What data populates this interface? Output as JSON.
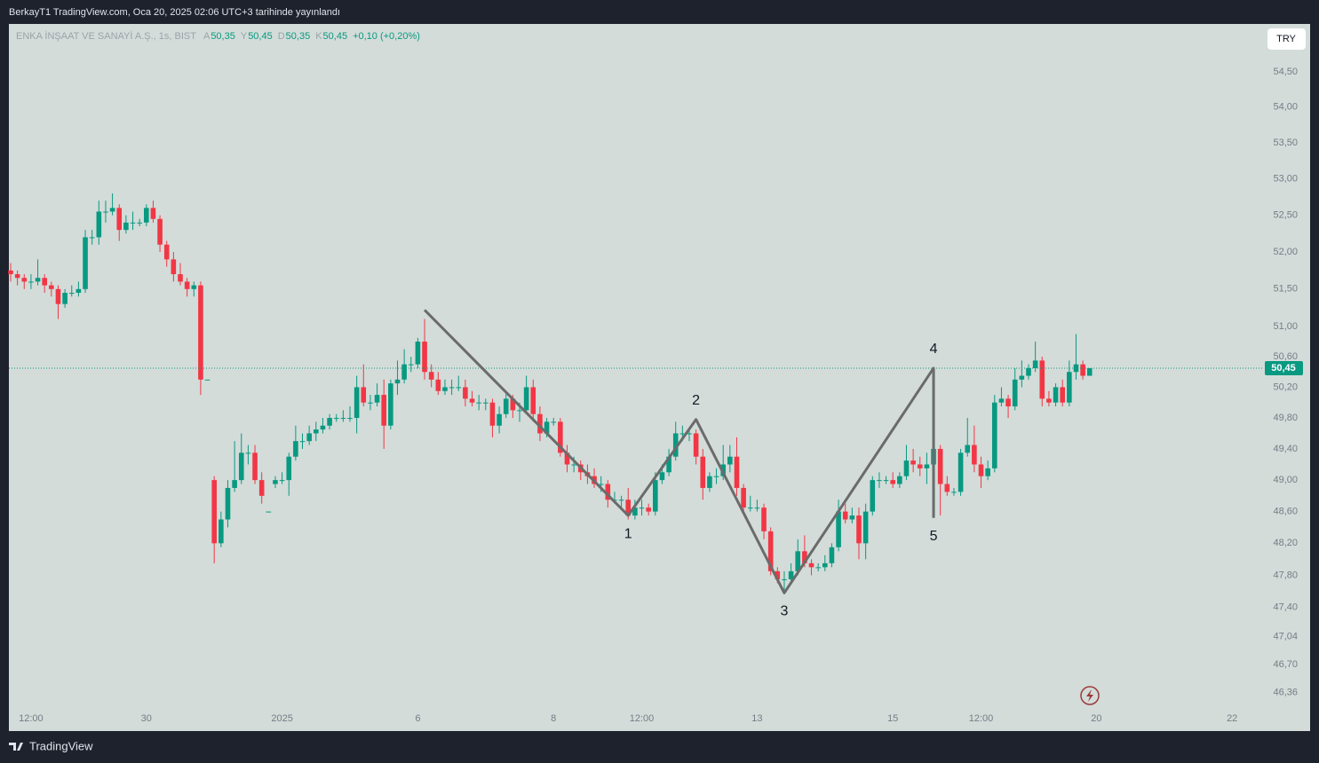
{
  "header": {
    "title": "BerkayT1 TradingView.com, Oca 20, 2025 02:06 UTC+3 tarihinde yayınlandı"
  },
  "footer": {
    "brand": "TradingView"
  },
  "chart_data": {
    "type": "candlestick",
    "symbol": "ENKA İNŞAAT VE SANAYİ A.Ş., 1s, BIST",
    "legend": [
      {
        "key": "A",
        "value": "50,35"
      },
      {
        "key": "Y",
        "value": "50,45"
      },
      {
        "key": "D",
        "value": "50,35"
      },
      {
        "key": "K",
        "value": "50,45"
      }
    ],
    "change": "+0,10 (+0,20%)",
    "currency": "TRY",
    "up_color": "#089981",
    "down_color": "#f23645",
    "log_scale": true,
    "grid": false,
    "ylim": [
      45.92,
      55.17
    ],
    "yticks": [
      {
        "value": 54.5,
        "label": "54,50"
      },
      {
        "value": 54,
        "label": "54,00"
      },
      {
        "value": 53.5,
        "label": "53,50"
      },
      {
        "value": 53,
        "label": "53,00"
      },
      {
        "value": 52.5,
        "label": "52,50"
      },
      {
        "value": 52,
        "label": "52,00"
      },
      {
        "value": 51.5,
        "label": "51,50"
      },
      {
        "value": 51,
        "label": "51,00"
      },
      {
        "value": 50.6,
        "label": "50,60"
      },
      {
        "value": 50.2,
        "label": "50,20"
      },
      {
        "value": 49.8,
        "label": "49,80"
      },
      {
        "value": 49.4,
        "label": "49,40"
      },
      {
        "value": 49,
        "label": "49,00"
      },
      {
        "value": 48.6,
        "label": "48,60"
      },
      {
        "value": 48.2,
        "label": "48,20"
      },
      {
        "value": 47.8,
        "label": "47,80"
      },
      {
        "value": 47.4,
        "label": "47,40"
      },
      {
        "value": 47.04,
        "label": "47,04"
      },
      {
        "value": 46.7,
        "label": "46,70"
      },
      {
        "value": 46.36,
        "label": "46,36"
      }
    ],
    "last_price": {
      "value": 50.45,
      "label": "50,45"
    },
    "categories": [
      null,
      null,
      null,
      "12:00",
      null,
      null,
      null,
      null,
      null,
      null,
      null,
      null,
      null,
      null,
      null,
      null,
      null,
      null,
      null,
      null,
      "30",
      null,
      null,
      null,
      null,
      null,
      null,
      null,
      null,
      null,
      null,
      null,
      null,
      null,
      null,
      null,
      null,
      null,
      null,
      null,
      "2025",
      null,
      null,
      null,
      null,
      null,
      null,
      null,
      null,
      null,
      null,
      null,
      null,
      null,
      null,
      null,
      null,
      null,
      null,
      null,
      "6",
      null,
      null,
      null,
      null,
      null,
      null,
      null,
      null,
      null,
      null,
      null,
      null,
      null,
      null,
      null,
      null,
      null,
      null,
      null,
      "8",
      null,
      null,
      null,
      null,
      null,
      null,
      null,
      null,
      null,
      null,
      null,
      null,
      "12:00",
      null,
      null,
      null,
      null,
      null,
      null,
      null,
      null,
      null,
      null,
      null,
      null,
      null,
      null,
      null,
      null,
      "13",
      null,
      null,
      null,
      null,
      null,
      null,
      null,
      null,
      null,
      null,
      null,
      null,
      null,
      null,
      null,
      null,
      null,
      null,
      null,
      "15",
      null,
      null,
      null,
      null,
      null,
      null,
      null,
      null,
      null,
      null,
      null,
      null,
      "12:00",
      null,
      null,
      null,
      null,
      null,
      null,
      null,
      null,
      null,
      null,
      null,
      null,
      null,
      null,
      null,
      null,
      "20",
      null,
      null,
      null,
      null,
      null,
      null,
      null,
      null,
      null,
      null,
      null,
      null,
      null,
      null,
      null,
      null,
      null,
      null,
      null,
      "22"
    ],
    "candles": [
      [
        51.75,
        51.85,
        51.6,
        51.7
      ],
      [
        51.7,
        51.75,
        51.55,
        51.65
      ],
      [
        51.65,
        51.7,
        51.5,
        51.6
      ],
      [
        51.6,
        51.7,
        51.5,
        51.6
      ],
      [
        51.6,
        51.9,
        51.55,
        51.65
      ],
      [
        51.65,
        51.7,
        51.45,
        51.55
      ],
      [
        51.55,
        51.6,
        51.4,
        51.5
      ],
      [
        51.5,
        51.55,
        51.1,
        51.3
      ],
      [
        51.3,
        51.5,
        51.25,
        51.45
      ],
      [
        51.45,
        51.55,
        51.4,
        51.45
      ],
      [
        51.45,
        51.6,
        51.4,
        51.5
      ],
      [
        51.5,
        52.3,
        51.45,
        52.2
      ],
      [
        52.2,
        52.3,
        52.1,
        52.2
      ],
      [
        52.2,
        52.7,
        52.1,
        52.55
      ],
      [
        52.55,
        52.7,
        52.4,
        52.55
      ],
      [
        52.55,
        52.8,
        52.5,
        52.6
      ],
      [
        52.6,
        52.65,
        52.15,
        52.3
      ],
      [
        52.3,
        52.5,
        52.25,
        52.4
      ],
      [
        52.4,
        52.55,
        52.3,
        52.4
      ],
      [
        52.4,
        52.45,
        52.35,
        52.4
      ],
      [
        52.4,
        52.65,
        52.35,
        52.6
      ],
      [
        52.6,
        52.7,
        52.4,
        52.45
      ],
      [
        52.45,
        52.5,
        52.0,
        52.1
      ],
      [
        52.1,
        52.15,
        51.8,
        51.9
      ],
      [
        51.9,
        52.0,
        51.6,
        51.7
      ],
      [
        51.7,
        51.85,
        51.55,
        51.6
      ],
      [
        51.6,
        51.65,
        51.4,
        51.5
      ],
      [
        51.5,
        51.6,
        51.4,
        51.55
      ],
      [
        51.55,
        51.6,
        50.1,
        50.3
      ],
      [
        50.3,
        50.3,
        50.3,
        50.3
      ],
      [
        49.0,
        49.05,
        47.95,
        48.2
      ],
      [
        48.2,
        48.6,
        48.15,
        48.5
      ],
      [
        48.5,
        49.0,
        48.4,
        48.9
      ],
      [
        48.9,
        49.5,
        48.85,
        49.0
      ],
      [
        49.0,
        49.6,
        48.95,
        49.35
      ],
      [
        49.35,
        49.45,
        49.2,
        49.35
      ],
      [
        49.35,
        49.45,
        48.95,
        49.0
      ],
      [
        49.0,
        49.1,
        48.7,
        48.8
      ],
      [
        48.6,
        48.6,
        48.6,
        48.6
      ],
      [
        48.95,
        49.05,
        48.9,
        49.0
      ],
      [
        49.0,
        49.1,
        48.95,
        49.0
      ],
      [
        49.0,
        49.35,
        48.8,
        49.3
      ],
      [
        49.3,
        49.7,
        49.25,
        49.5
      ],
      [
        49.5,
        49.6,
        49.4,
        49.5
      ],
      [
        49.5,
        49.7,
        49.45,
        49.6
      ],
      [
        49.6,
        49.75,
        49.5,
        49.65
      ],
      [
        49.65,
        49.8,
        49.6,
        49.7
      ],
      [
        49.7,
        49.85,
        49.65,
        49.8
      ],
      [
        49.8,
        49.85,
        49.75,
        49.8
      ],
      [
        49.8,
        49.9,
        49.75,
        49.8
      ],
      [
        49.8,
        49.95,
        49.75,
        49.8
      ],
      [
        49.8,
        50.35,
        49.6,
        50.2
      ],
      [
        50.2,
        50.5,
        49.95,
        50.0
      ],
      [
        50.0,
        50.1,
        49.9,
        50.0
      ],
      [
        50.0,
        50.25,
        49.95,
        50.1
      ],
      [
        50.1,
        50.3,
        49.4,
        49.7
      ],
      [
        49.7,
        50.3,
        49.65,
        50.25
      ],
      [
        50.25,
        50.55,
        50.1,
        50.3
      ],
      [
        50.3,
        50.7,
        50.25,
        50.5
      ],
      [
        50.5,
        50.6,
        50.4,
        50.5
      ],
      [
        50.5,
        50.85,
        50.45,
        50.8
      ],
      [
        50.8,
        51.1,
        50.3,
        50.4
      ],
      [
        50.4,
        50.5,
        50.2,
        50.3
      ],
      [
        50.3,
        50.4,
        50.1,
        50.15
      ],
      [
        50.15,
        50.3,
        50.1,
        50.2
      ],
      [
        50.2,
        50.3,
        50.1,
        50.2
      ],
      [
        50.2,
        50.35,
        50.15,
        50.2
      ],
      [
        50.2,
        50.3,
        49.95,
        50.05
      ],
      [
        50.05,
        50.15,
        49.95,
        50.0
      ],
      [
        50.0,
        50.1,
        49.9,
        50.0
      ],
      [
        50.0,
        50.05,
        49.9,
        50.0
      ],
      [
        50.0,
        50.05,
        49.55,
        49.7
      ],
      [
        49.7,
        49.95,
        49.6,
        49.85
      ],
      [
        49.85,
        50.15,
        49.8,
        50.05
      ],
      [
        50.05,
        50.1,
        49.8,
        49.9
      ],
      [
        49.9,
        50.0,
        49.75,
        49.9
      ],
      [
        49.9,
        50.35,
        49.85,
        50.2
      ],
      [
        50.2,
        50.3,
        49.75,
        49.85
      ],
      [
        49.85,
        49.95,
        49.5,
        49.6
      ],
      [
        49.6,
        49.8,
        49.55,
        49.75
      ],
      [
        49.75,
        49.8,
        49.7,
        49.75
      ],
      [
        49.75,
        49.8,
        49.3,
        49.35
      ],
      [
        49.35,
        49.45,
        49.1,
        49.2
      ],
      [
        49.2,
        49.3,
        49.1,
        49.2
      ],
      [
        49.2,
        49.25,
        49.0,
        49.1
      ],
      [
        49.1,
        49.2,
        48.95,
        49.05
      ],
      [
        49.05,
        49.15,
        48.9,
        48.95
      ],
      [
        48.95,
        49.05,
        48.85,
        48.95
      ],
      [
        48.95,
        49.0,
        48.65,
        48.75
      ],
      [
        48.75,
        48.85,
        48.7,
        48.75
      ],
      [
        48.75,
        48.8,
        48.65,
        48.75
      ],
      [
        48.75,
        48.9,
        48.5,
        48.55
      ],
      [
        48.55,
        48.75,
        48.5,
        48.65
      ],
      [
        48.65,
        48.75,
        48.55,
        48.65
      ],
      [
        48.65,
        48.7,
        48.55,
        48.6
      ],
      [
        48.6,
        49.1,
        48.55,
        49.0
      ],
      [
        49.0,
        49.2,
        48.95,
        49.1
      ],
      [
        49.1,
        49.4,
        49.05,
        49.3
      ],
      [
        49.3,
        49.75,
        49.25,
        49.6
      ],
      [
        49.6,
        49.7,
        49.5,
        49.6
      ],
      [
        49.6,
        49.65,
        49.5,
        49.6
      ],
      [
        49.6,
        49.65,
        49.2,
        49.3
      ],
      [
        49.3,
        49.4,
        48.75,
        48.9
      ],
      [
        48.9,
        49.1,
        48.85,
        49.05
      ],
      [
        49.05,
        49.15,
        48.95,
        49.05
      ],
      [
        49.05,
        49.45,
        49.0,
        49.2
      ],
      [
        49.2,
        49.45,
        49.1,
        49.3
      ],
      [
        49.3,
        49.55,
        48.8,
        48.9
      ],
      [
        48.9,
        48.95,
        48.6,
        48.65
      ],
      [
        48.65,
        48.8,
        48.6,
        48.65
      ],
      [
        48.65,
        48.75,
        48.6,
        48.65
      ],
      [
        48.65,
        48.7,
        48.25,
        48.35
      ],
      [
        48.35,
        48.4,
        47.8,
        47.85
      ],
      [
        47.85,
        47.9,
        47.7,
        47.75
      ],
      [
        47.75,
        47.85,
        47.6,
        47.75
      ],
      [
        47.75,
        47.95,
        47.7,
        47.85
      ],
      [
        47.85,
        48.25,
        47.8,
        48.1
      ],
      [
        48.1,
        48.3,
        47.9,
        47.95
      ],
      [
        47.95,
        48.0,
        47.8,
        47.9
      ],
      [
        47.9,
        47.95,
        47.85,
        47.9
      ],
      [
        47.9,
        48.05,
        47.85,
        47.95
      ],
      [
        47.95,
        48.2,
        47.9,
        48.15
      ],
      [
        48.15,
        48.75,
        48.1,
        48.6
      ],
      [
        48.6,
        48.7,
        48.45,
        48.5
      ],
      [
        48.5,
        48.65,
        48.45,
        48.55
      ],
      [
        48.55,
        48.65,
        48.0,
        48.2
      ],
      [
        48.2,
        48.7,
        48.0,
        48.6
      ],
      [
        48.6,
        49.05,
        48.55,
        49.0
      ],
      [
        49.0,
        49.1,
        48.9,
        49.0
      ],
      [
        49.0,
        49.05,
        48.95,
        49.0
      ],
      [
        49.0,
        49.1,
        48.9,
        48.95
      ],
      [
        48.95,
        49.1,
        48.9,
        49.05
      ],
      [
        49.05,
        49.45,
        49.0,
        49.25
      ],
      [
        49.25,
        49.4,
        49.1,
        49.2
      ],
      [
        49.2,
        49.3,
        49.05,
        49.15
      ],
      [
        49.15,
        49.35,
        48.95,
        49.2
      ],
      [
        49.2,
        49.55,
        48.6,
        49.4
      ],
      [
        49.4,
        49.45,
        48.55,
        48.95
      ],
      [
        48.95,
        49.05,
        48.8,
        48.85
      ],
      [
        48.85,
        48.9,
        48.8,
        48.85
      ],
      [
        48.85,
        49.4,
        48.8,
        49.35
      ],
      [
        49.35,
        49.8,
        49.3,
        49.45
      ],
      [
        49.45,
        49.7,
        49.1,
        49.2
      ],
      [
        49.2,
        49.3,
        48.9,
        49.05
      ],
      [
        49.05,
        49.25,
        49.0,
        49.15
      ],
      [
        49.15,
        50.1,
        49.1,
        50.0
      ],
      [
        50.0,
        50.2,
        49.95,
        50.05
      ],
      [
        50.05,
        50.1,
        49.8,
        49.95
      ],
      [
        49.95,
        50.45,
        49.9,
        50.3
      ],
      [
        50.3,
        50.55,
        50.2,
        50.35
      ],
      [
        50.35,
        50.5,
        50.3,
        50.45
      ],
      [
        50.45,
        50.8,
        50.4,
        50.55
      ],
      [
        50.55,
        50.6,
        49.95,
        50.05
      ],
      [
        50.05,
        50.15,
        49.95,
        50.0
      ],
      [
        50.0,
        50.25,
        49.95,
        50.2
      ],
      [
        50.2,
        50.3,
        49.95,
        50.0
      ],
      [
        50.0,
        50.55,
        49.95,
        50.4
      ],
      [
        50.4,
        50.9,
        50.3,
        50.5
      ],
      [
        50.5,
        50.55,
        50.3,
        50.35
      ],
      [
        50.35,
        50.45,
        50.35,
        50.45
      ],
      null,
      null,
      null,
      null,
      null,
      null,
      null,
      null,
      null,
      null,
      null,
      null,
      null,
      null,
      null,
      null,
      null,
      null,
      null,
      null,
      null
    ],
    "pattern": {
      "color": "#6b6b6b",
      "points": [
        {
          "bar": 61,
          "price": 51.22
        },
        {
          "bar": 91,
          "price": 48.55,
          "label": "1"
        },
        {
          "bar": 101,
          "price": 49.78,
          "label": "2"
        },
        {
          "bar": 114,
          "price": 47.58,
          "label": "3"
        },
        {
          "bar": 136,
          "price": 50.45,
          "label": "4"
        },
        {
          "bar": 136,
          "price": 48.52,
          "label": "5"
        }
      ]
    }
  }
}
